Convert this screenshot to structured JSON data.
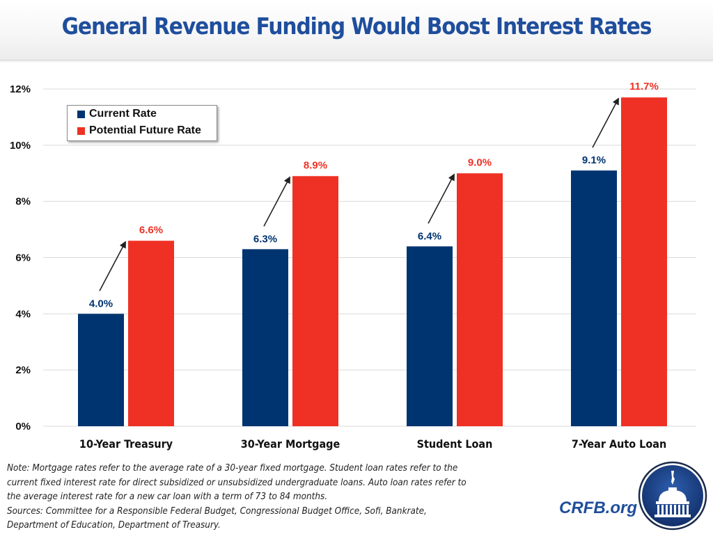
{
  "header": {
    "title": "General Revenue Funding Would Boost Interest Rates"
  },
  "colors": {
    "title": "#1f4e9c",
    "current": "#003470",
    "future": "#ee3124",
    "grid": "#d9d9d9",
    "arrow": "#222222"
  },
  "chart_data": {
    "type": "bar",
    "title": "General Revenue Funding Would Boost Interest Rates",
    "xlabel": "",
    "ylabel": "",
    "ylim": [
      0,
      12
    ],
    "yticks": [
      0,
      2,
      4,
      6,
      8,
      10,
      12
    ],
    "ytick_labels": [
      "0%",
      "2%",
      "4%",
      "6%",
      "8%",
      "10%",
      "12%"
    ],
    "grid": true,
    "legend_position": "top-left",
    "categories": [
      "10-Year Treasury",
      "30-Year Mortgage",
      "Student Loan",
      "7-Year Auto Loan"
    ],
    "series": [
      {
        "name": "Current Rate",
        "color": "#003470",
        "values": [
          4.0,
          6.3,
          6.4,
          9.1
        ],
        "labels": [
          "4.0%",
          "6.3%",
          "6.4%",
          "9.1%"
        ]
      },
      {
        "name": "Potential Future Rate",
        "color": "#ee3124",
        "values": [
          6.6,
          8.9,
          9.0,
          11.7
        ],
        "labels": [
          "6.6%",
          "8.9%",
          "9.0%",
          "11.7%"
        ]
      }
    ],
    "annotations": "Arrows point from each Current Rate label to the top of the corresponding Potential Future Rate bar"
  },
  "footer": {
    "note_lines": [
      "Note: Mortgage rates refer to the average rate of a 30-year fixed mortgage. Student loan rates refer to the",
      "current fixed interest rate for direct subsidized or unsubsidized undergraduate loans. Auto loan rates refer to",
      "the average interest rate for a new car loan with a term of 73 to 84 months.",
      "Sources: Committee for a Responsible Federal Budget, Congressional Budget Office, Sofi, Bankrate,",
      "Department of Education, Department of Treasury."
    ],
    "brand": "CRFB.org",
    "logo_icon": "capitol-dome-icon"
  }
}
